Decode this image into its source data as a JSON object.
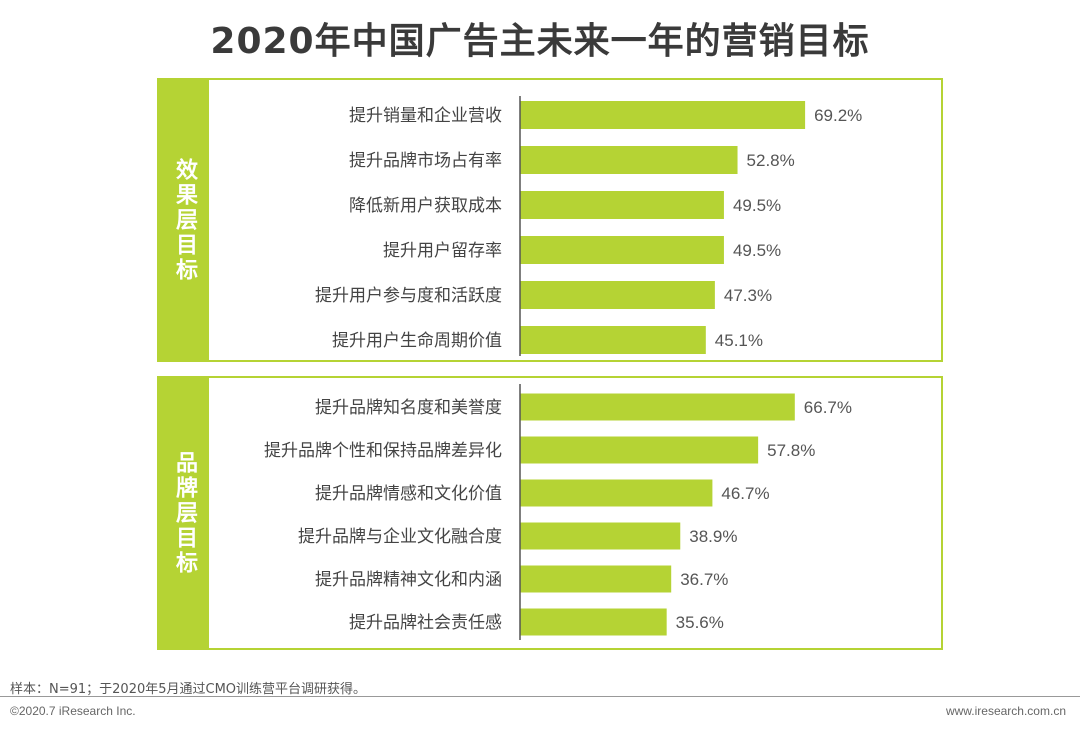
{
  "title": "2020年中国广告主未来一年的营销目标",
  "chart_data": [
    {
      "type": "bar",
      "orientation": "horizontal",
      "group": "效果层目标",
      "categories": [
        "提升销量和企业营收",
        "提升品牌市场占有率",
        "降低新用户获取成本",
        "提升用户留存率",
        "提升用户参与度和活跃度",
        "提升用户生命周期价值"
      ],
      "values": [
        69.2,
        52.8,
        49.5,
        49.5,
        47.3,
        45.1
      ],
      "value_suffix": "%",
      "xlim": [
        0,
        100
      ],
      "bar_color": "#b5d334"
    },
    {
      "type": "bar",
      "orientation": "horizontal",
      "group": "品牌层目标",
      "categories": [
        "提升品牌知名度和美誉度",
        "提升品牌个性和保持品牌差异化",
        "提升品牌情感和文化价值",
        "提升品牌与企业文化融合度",
        "提升品牌精神文化和内涵",
        "提升品牌社会责任感"
      ],
      "values": [
        66.7,
        57.8,
        46.7,
        38.9,
        36.7,
        35.6
      ],
      "value_suffix": "%",
      "xlim": [
        0,
        100
      ],
      "bar_color": "#b5d334"
    }
  ],
  "footer": {
    "note": "样本：N=91；于2020年5月通过CMO训练营平台调研获得。",
    "copyright": "©2020.7 iResearch Inc.",
    "website": "www.iresearch.com.cn"
  }
}
